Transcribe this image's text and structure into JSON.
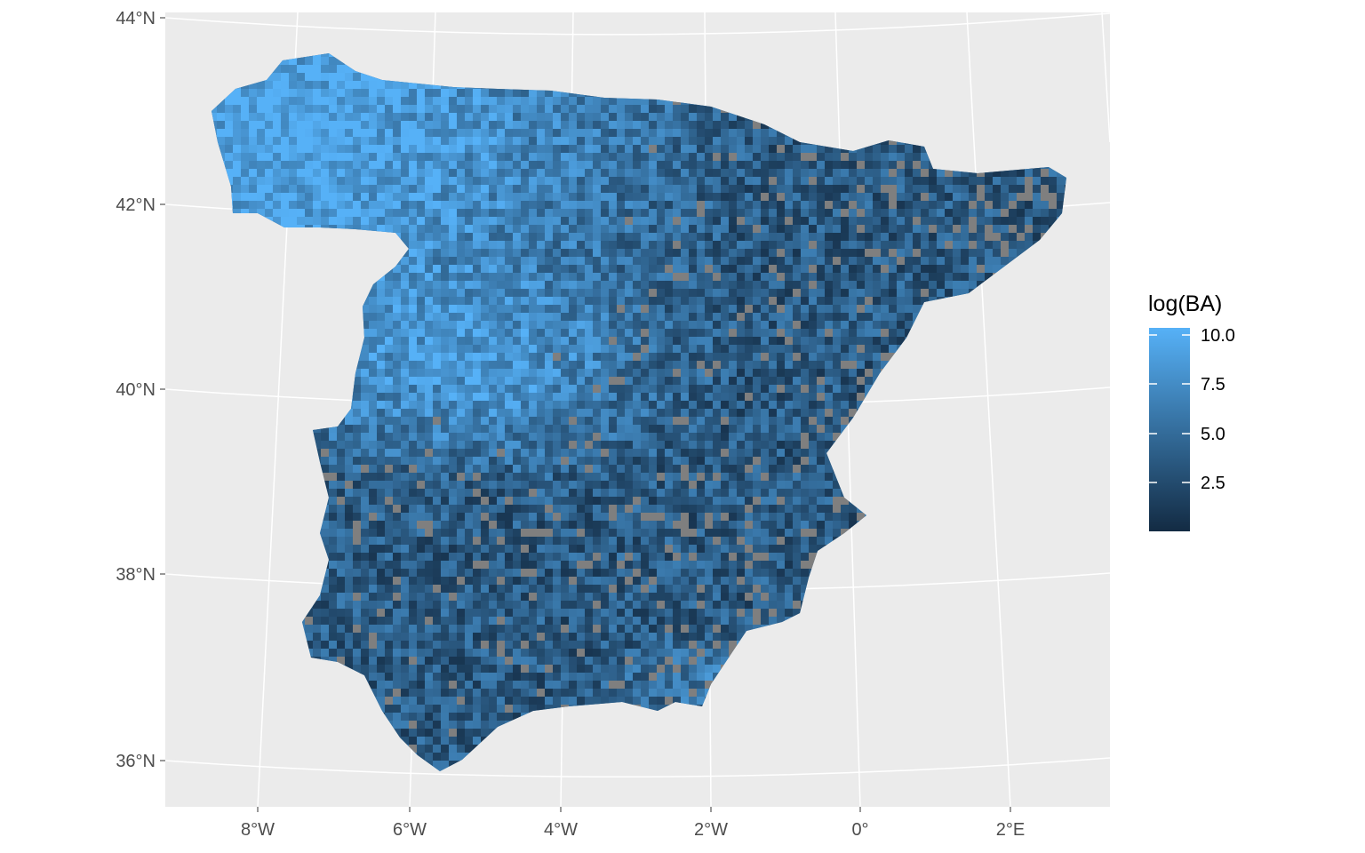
{
  "map": {
    "region": "Iberian Peninsula (Spain)",
    "projection": "conic",
    "panel_background": "#ebebeb",
    "graticule_color": "#ffffff",
    "missing_cell_color": "#7f7f7f",
    "y_axis_ticks": [
      "44°N",
      "42°N",
      "40°N",
      "38°N",
      "36°N"
    ],
    "x_axis_ticks": [
      "8°W",
      "6°W",
      "4°W",
      "2°W",
      "0°",
      "2°E"
    ],
    "gradient_low": "#132b43",
    "gradient_high": "#56b1f7",
    "dominant_pattern": "high values (light blue) in the northwest (Galicia, Asturias, northern plateau); lower values (dark blue) with scattered missing cells in the east and south"
  },
  "legend": {
    "title": "log(BA)",
    "labels": [
      "10.0",
      "7.5",
      "5.0",
      "2.5"
    ],
    "values": [
      10.0,
      7.5,
      5.0,
      2.5
    ],
    "range": [
      0.3,
      10.3
    ]
  }
}
